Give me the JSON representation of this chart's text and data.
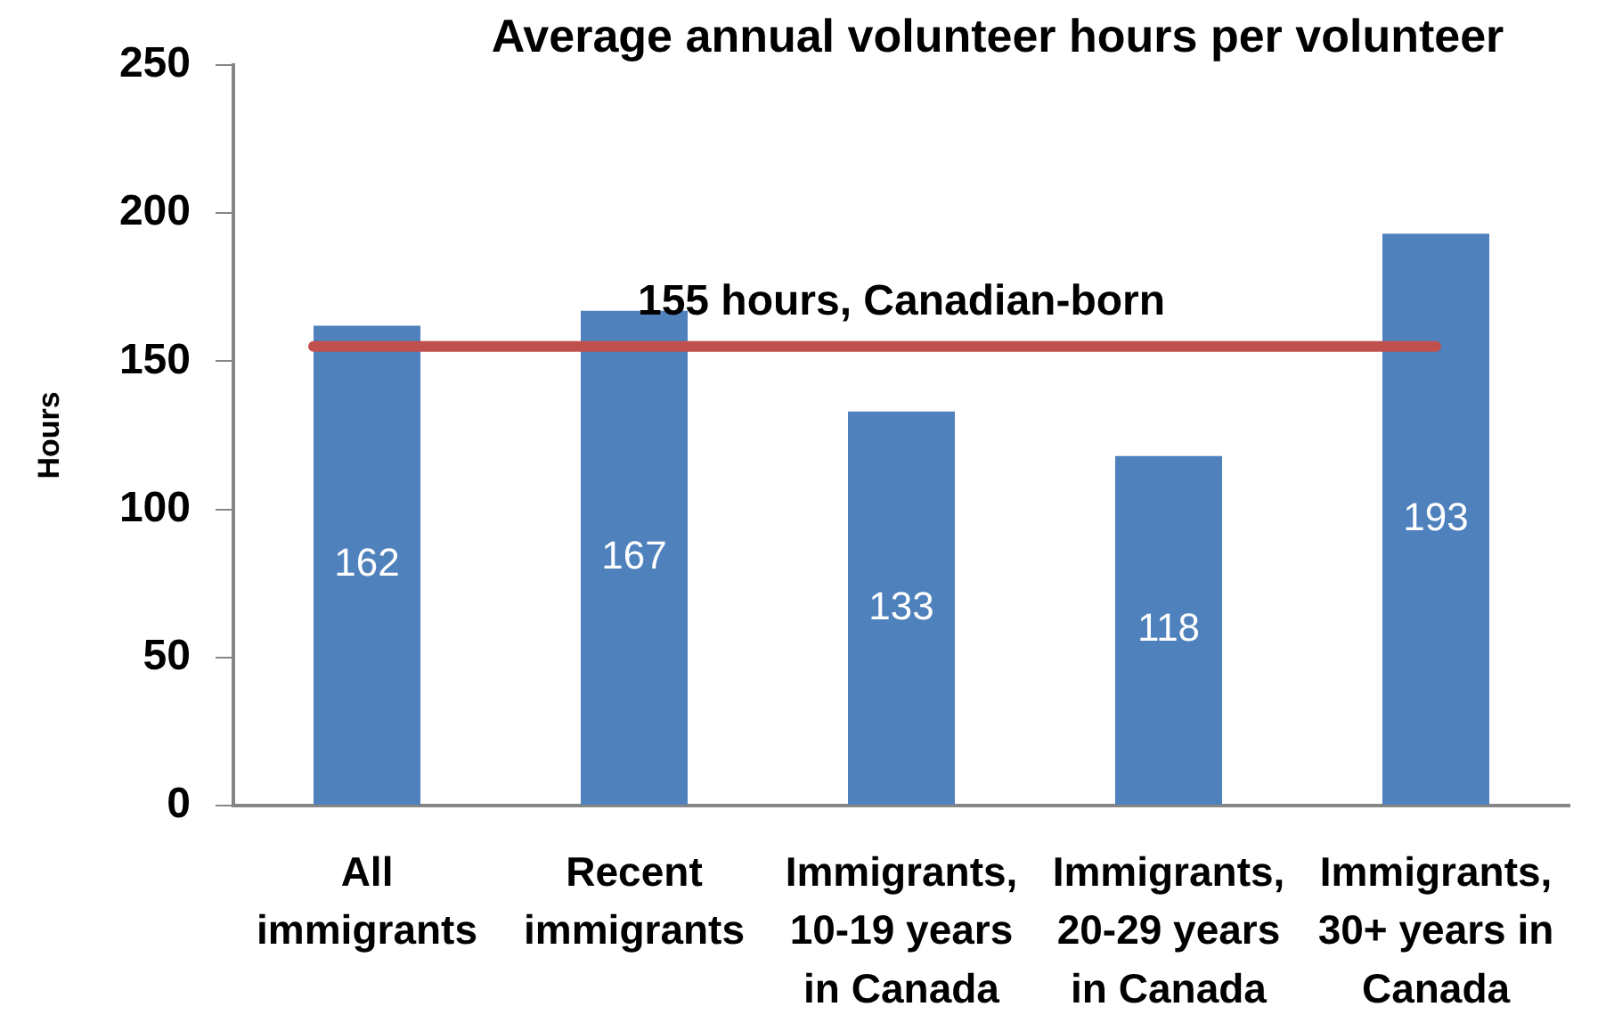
{
  "chart_data": {
    "type": "bar",
    "title": "Average annual volunteer hours per volunteer",
    "ylabel": "Hours",
    "categories": [
      "All immigrants",
      "Recent immigrants",
      "Immigrants, 10-19 years in Canada",
      "Immigrants, 20-29 years in Canada",
      "Immigrants, 30+ years in Canada"
    ],
    "values": [
      162,
      167,
      133,
      118,
      193
    ],
    "color": "#4f81bd",
    "ylim": [
      0,
      250
    ],
    "yticks": [
      0,
      50,
      100,
      150,
      200,
      250
    ],
    "data_labels": true,
    "ref_lines": [
      {
        "axis": "y",
        "value": 155,
        "label": "155 hours, Canadian-born",
        "color": "#c0504d"
      }
    ]
  }
}
